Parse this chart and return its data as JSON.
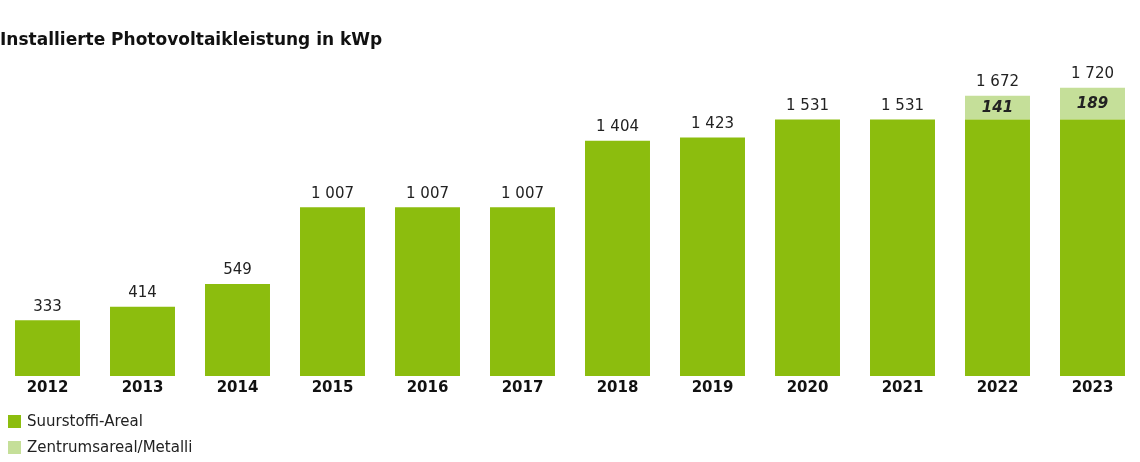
{
  "chart_data": {
    "type": "bar",
    "title": "Installierte Photovoltaikleistung in kWp",
    "stacked": true,
    "legend": "bottom left",
    "grid": false,
    "categories": [
      "2012",
      "2013",
      "2014",
      "2015",
      "2016",
      "2017",
      "2018",
      "2019",
      "2020",
      "2021",
      "2022",
      "2023"
    ],
    "series": [
      {
        "name": "Suurstoffi-Areal",
        "color": "#8cbd0e",
        "values": [
          333,
          414,
          549,
          1007,
          1007,
          1007,
          1404,
          1423,
          1531,
          1531,
          1531,
          1531
        ]
      },
      {
        "name": "Zentrumsareal/Metalli",
        "color": "#c5df99",
        "values": [
          null,
          null,
          null,
          null,
          null,
          null,
          null,
          null,
          null,
          null,
          141,
          189
        ],
        "value_labels": [
          null,
          null,
          null,
          null,
          null,
          null,
          null,
          null,
          null,
          null,
          "141",
          "189"
        ]
      }
    ],
    "totals": [
      "333",
      "414",
      "549",
      "1 007",
      "1 007",
      "1 007",
      "1 404",
      "1 423",
      "1 531",
      "1 531",
      "1 672",
      "1 720"
    ]
  }
}
